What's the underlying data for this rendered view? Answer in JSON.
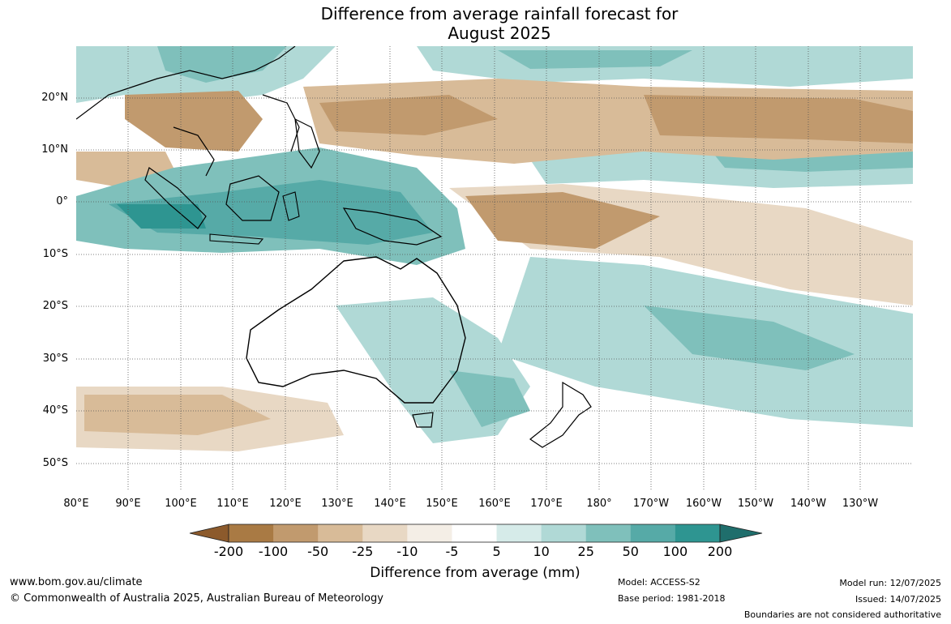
{
  "title_line1": "Difference from average rainfall forecast for",
  "title_line2": "August 2025",
  "lat_labels": [
    "20°N",
    "10°N",
    "0°",
    "10°S",
    "20°S",
    "30°S",
    "40°S",
    "50°S"
  ],
  "lon_labels": [
    "80°E",
    "90°E",
    "100°E",
    "110°E",
    "120°E",
    "130°E",
    "140°E",
    "150°E",
    "160°E",
    "170°E",
    "180°",
    "170°W",
    "160°W",
    "150°W",
    "140°W",
    "130°W"
  ],
  "colorbar": {
    "ticks": [
      "-200",
      "-100",
      "-50",
      "-25",
      "-10",
      "-5",
      "5",
      "10",
      "25",
      "50",
      "100",
      "200"
    ],
    "colors": [
      "#8c5a2c",
      "#a97a44",
      "#c19a6e",
      "#d8bb98",
      "#e8d8c4",
      "#f4eee6",
      "#ffffff",
      "#d6ebe9",
      "#b0d9d6",
      "#7fc0bb",
      "#56aaa7",
      "#2e9591",
      "#1f6e6c"
    ],
    "title": "Difference from average (mm)"
  },
  "footer": {
    "website": "www.bom.gov.au/climate",
    "copyright": "© Commonwealth of Australia 2025, Australian Bureau of Meteorology",
    "model": "Model: ACCESS-S2",
    "base_period": "Base period: 1981-2018",
    "model_run": "Model run: 12/07/2025",
    "issued": "Issued: 14/07/2025",
    "disclaimer": "Boundaries are not considered authoritative"
  }
}
